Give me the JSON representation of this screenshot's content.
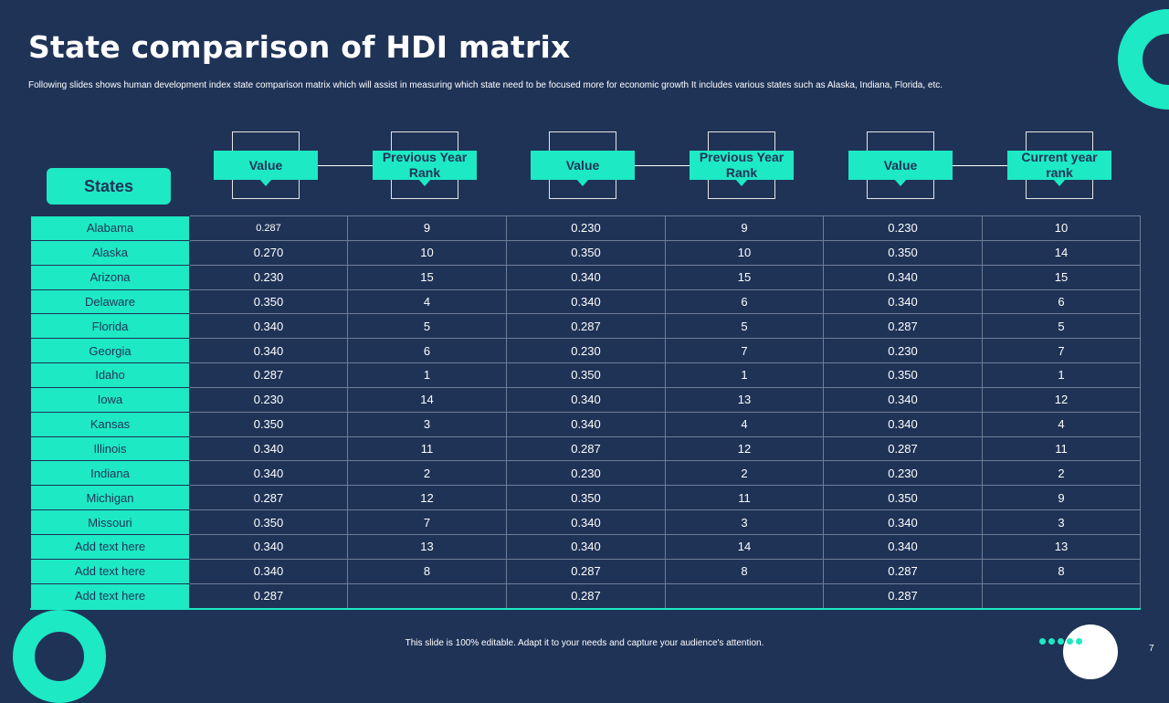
{
  "title": "State comparison of HDI matrix",
  "subtitle": "Following slides shows human development index state comparison matrix which will assist in measuring which state need to be focused more for economic growth  It includes  various states such as Alaska, Indiana, Florida, etc.",
  "states_header": "States",
  "column_headers": [
    "Value",
    "Previous Year Rank",
    "Value",
    "Previous Year Rank",
    "Value",
    "Current year rank"
  ],
  "rows": [
    {
      "state": "Alabama",
      "cells": [
        "0.287",
        "9",
        "0.230",
        "9",
        "0.230",
        "10"
      ]
    },
    {
      "state": "Alaska",
      "cells": [
        "0.270",
        "10",
        "0.350",
        "10",
        "0.350",
        "14"
      ]
    },
    {
      "state": "Arizona",
      "cells": [
        "0.230",
        "15",
        "0.340",
        "15",
        "0.340",
        "15"
      ]
    },
    {
      "state": "Delaware",
      "cells": [
        "0.350",
        "4",
        "0.340",
        "6",
        "0.340",
        "6"
      ]
    },
    {
      "state": "Florida",
      "cells": [
        "0.340",
        "5",
        "0.287",
        "5",
        "0.287",
        "5"
      ]
    },
    {
      "state": "Georgia",
      "cells": [
        "0.340",
        "6",
        "0.230",
        "7",
        "0.230",
        "7"
      ]
    },
    {
      "state": "Idaho",
      "cells": [
        "0.287",
        "1",
        "0.350",
        "1",
        "0.350",
        "1"
      ]
    },
    {
      "state": "Iowa",
      "cells": [
        "0.230",
        "14",
        "0.340",
        "13",
        "0.340",
        "12"
      ]
    },
    {
      "state": "Kansas",
      "cells": [
        "0.350",
        "3",
        "0.340",
        "4",
        "0.340",
        "4"
      ]
    },
    {
      "state": "Illinois",
      "cells": [
        "0.340",
        "11",
        "0.287",
        "12",
        "0.287",
        "11"
      ]
    },
    {
      "state": "Indiana",
      "cells": [
        "0.340",
        "2",
        "0.230",
        "2",
        "0.230",
        "2"
      ]
    },
    {
      "state": "Michigan",
      "cells": [
        "0.287",
        "12",
        "0.350",
        "11",
        "0.350",
        "9"
      ]
    },
    {
      "state": "Missouri",
      "cells": [
        "0.350",
        "7",
        "0.340",
        "3",
        "0.340",
        "3"
      ]
    },
    {
      "state": "Add text here",
      "cells": [
        "0.340",
        "13",
        "0.340",
        "14",
        "0.340",
        "13"
      ]
    },
    {
      "state": "Add text here",
      "cells": [
        "0.340",
        "8",
        "0.287",
        "8",
        "0.287",
        "8"
      ]
    },
    {
      "state": "Add text here",
      "cells": [
        "0.287",
        "",
        "0.287",
        "",
        "0.287",
        ""
      ]
    }
  ],
  "footer": "This slide is 100% editable.  Adapt it to your needs and capture your audience's attention.",
  "page_number": "7",
  "colors": {
    "background": "#1f3357",
    "accent": "#1de9c4",
    "text": "#ffffff"
  }
}
